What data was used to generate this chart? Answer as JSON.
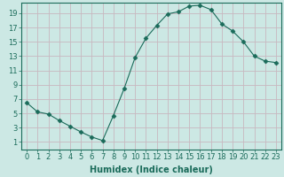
{
  "x": [
    0,
    1,
    2,
    3,
    4,
    5,
    6,
    7,
    8,
    9,
    10,
    11,
    12,
    13,
    14,
    15,
    16,
    17,
    18,
    19,
    20,
    21,
    22,
    23
  ],
  "y": [
    6.5,
    5.2,
    4.9,
    4.0,
    3.2,
    2.4,
    1.7,
    1.2,
    4.7,
    8.5,
    12.8,
    15.5,
    17.3,
    18.9,
    19.2,
    20.0,
    20.1,
    19.5,
    17.5,
    16.5,
    15.0,
    13.0,
    12.3,
    12.1
  ],
  "line_color": "#1a6b5a",
  "marker": "D",
  "marker_size": 2.5,
  "bg_color": "#cce8e4",
  "grid_color": "#c8b8c0",
  "xlabel": "Humidex (Indice chaleur)",
  "xlim": [
    -0.5,
    23.5
  ],
  "ylim": [
    0,
    20.5
  ],
  "yticks": [
    1,
    3,
    5,
    7,
    9,
    11,
    13,
    15,
    17,
    19
  ],
  "xticks": [
    0,
    1,
    2,
    3,
    4,
    5,
    6,
    7,
    8,
    9,
    10,
    11,
    12,
    13,
    14,
    15,
    16,
    17,
    18,
    19,
    20,
    21,
    22,
    23
  ],
  "label_fontsize": 7,
  "tick_fontsize": 6
}
